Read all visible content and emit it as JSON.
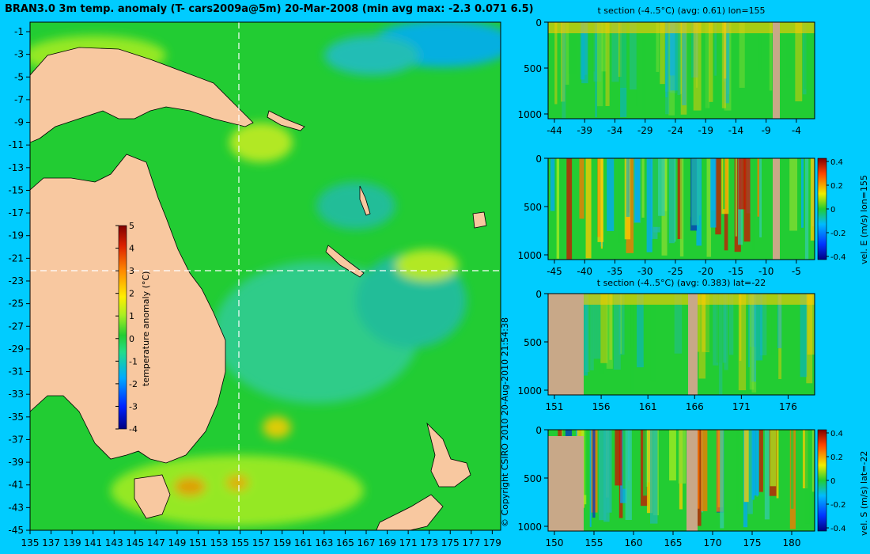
{
  "map": {
    "title": "BRAN3.0 3m temp. anomaly (T- cars2009a@5m) 20-Mar-2008 (min avg max: -2.3 0.071 6.5)",
    "x_ticks": [
      "135",
      "137",
      "139",
      "141",
      "143",
      "145",
      "147",
      "149",
      "151",
      "153",
      "155",
      "157",
      "159",
      "161",
      "163",
      "165",
      "167",
      "169",
      "171",
      "173",
      "175",
      "177",
      "179"
    ],
    "y_ticks": [
      "-1",
      "-3",
      "-5",
      "-7",
      "-9",
      "-11",
      "-13",
      "-15",
      "-17",
      "-19",
      "-21",
      "-23",
      "-25",
      "-27",
      "-29",
      "-31",
      "-33",
      "-35",
      "-37",
      "-39",
      "-41",
      "-43",
      "-45"
    ],
    "crosshair": {
      "lon": 155,
      "lat": -22
    },
    "colorbar": {
      "label": "temperature anomaly (°C)",
      "ticks": [
        "5",
        "4",
        "3",
        "2",
        "1",
        "0",
        "-1",
        "-2",
        "-3",
        "-4"
      ],
      "min": -4,
      "max": 5
    },
    "copyright": "© Copyright CSIRO 2010   20-Aug-2010 21:54:38",
    "colors": {
      "land": "#f8c8a0",
      "ocean": "#22cc33",
      "background": "#00ccff"
    }
  },
  "panels": [
    {
      "id": "t-lon",
      "title": "t section (-4..5°C) (avg: 0.61) lon=155",
      "x_ticks": [
        "-44",
        "-39",
        "-34",
        "-29",
        "-24",
        "-19",
        "-14",
        "-9",
        "-4"
      ],
      "y_ticks": [
        "0",
        "500",
        "1000"
      ],
      "colorbar": null
    },
    {
      "id": "u-lon",
      "title": "",
      "x_ticks": [
        "-45",
        "-40",
        "-35",
        "-30",
        "-25",
        "-20",
        "-15",
        "-10",
        "-5"
      ],
      "y_ticks": [
        "0",
        "500",
        "1000"
      ],
      "colorbar": {
        "label": "vel. E (m/s) lon=155",
        "ticks": [
          "0.4",
          "0.2",
          "0",
          "-0.2",
          "-0.4"
        ]
      }
    },
    {
      "id": "t-lat",
      "title": "t section (-4..5°C) (avg: 0.383) lat=-22",
      "x_ticks": [
        "151",
        "156",
        "161",
        "166",
        "171",
        "176"
      ],
      "y_ticks": [
        "0",
        "500",
        "1000"
      ],
      "colorbar": null
    },
    {
      "id": "v-lat",
      "title": "",
      "x_ticks": [
        "150",
        "155",
        "160",
        "165",
        "170",
        "175",
        "180"
      ],
      "y_ticks": [
        "0",
        "500",
        "1000"
      ],
      "colorbar": {
        "label": "vel. S (m/s) lat=-22",
        "ticks": [
          "0.4",
          "0.2",
          "0",
          "-0.2",
          "-0.4"
        ]
      }
    }
  ]
}
